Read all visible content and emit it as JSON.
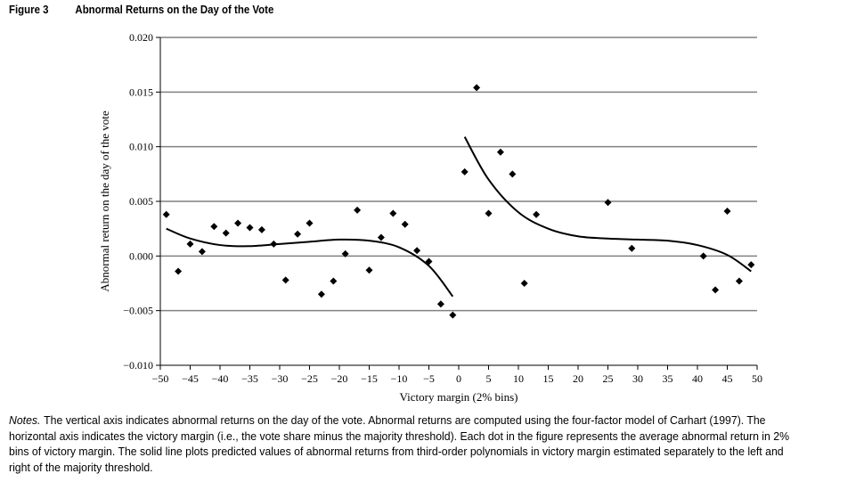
{
  "header": {
    "figure": "Figure 3",
    "title": "Abnormal Returns on the Day of the Vote"
  },
  "notes": {
    "label": "Notes.",
    "text": "The vertical axis indicates abnormal returns on the day of the vote. Abnormal returns are computed using the four-factor model of Carhart (1997). The horizontal axis indicates the victory margin (i.e., the vote share minus the majority threshold). Each dot in the figure represents the average abnormal return in 2% bins of victory margin. The solid line plots predicted values of abnormal returns from third-order polynomials in victory margin estimated separately to the left and right of the majority threshold."
  },
  "chart_data": {
    "type": "scatter",
    "title": "Abnormal Returns on the Day of the Vote",
    "xlabel": "Victory margin (2% bins)",
    "ylabel": "Abnormal return on the day of the vote",
    "xlim": [
      -50,
      50
    ],
    "ylim": [
      -0.01,
      0.02
    ],
    "xticks": [
      -50,
      -45,
      -40,
      -35,
      -30,
      -25,
      -20,
      -15,
      -10,
      -5,
      0,
      5,
      10,
      15,
      20,
      25,
      30,
      35,
      40,
      45,
      50
    ],
    "xtick_labels": [
      "−50",
      "−45",
      "−40",
      "−35",
      "−30",
      "−25",
      "−20",
      "−15",
      "−10",
      "−5",
      "0",
      "5",
      "10",
      "15",
      "20",
      "25",
      "30",
      "35",
      "40",
      "45",
      "50"
    ],
    "yticks": [
      -0.01,
      -0.005,
      0.0,
      0.005,
      0.01,
      0.015,
      0.02
    ],
    "ytick_labels": [
      "−0.010",
      "−0.005",
      "0.000",
      "0.005",
      "0.010",
      "0.015",
      "0.020"
    ],
    "grid": "horizontal",
    "points": {
      "x": [
        -49,
        -47,
        -45,
        -43,
        -41,
        -39,
        -37,
        -35,
        -33,
        -31,
        -29,
        -27,
        -25,
        -23,
        -21,
        -19,
        -17,
        -15,
        -13,
        -11,
        -9,
        -7,
        -5,
        -3,
        -1,
        1,
        3,
        5,
        7,
        9,
        11,
        13,
        25,
        29,
        41,
        43,
        45,
        47,
        49
      ],
      "y": [
        0.0038,
        -0.0014,
        0.0011,
        0.0004,
        0.0027,
        0.0021,
        0.003,
        0.0026,
        0.0024,
        0.0011,
        -0.0022,
        0.002,
        0.003,
        -0.0035,
        -0.0023,
        0.0002,
        0.0042,
        -0.0013,
        0.0017,
        0.0039,
        0.0029,
        0.0005,
        -0.0005,
        -0.0044,
        -0.0054,
        0.0077,
        0.0154,
        0.0039,
        0.0095,
        0.0075,
        -0.0025,
        0.0038,
        0.0049,
        0.0007,
        0.0,
        -0.0031,
        0.0041,
        -0.0023,
        -0.0008
      ]
    },
    "fit_left": {
      "x": [
        -49,
        -45,
        -40,
        -35,
        -30,
        -25,
        -20,
        -15,
        -10,
        -5,
        -1
      ],
      "y": [
        0.0025,
        0.0016,
        0.001,
        0.0009,
        0.0011,
        0.0013,
        0.0015,
        0.0014,
        0.0008,
        -0.0009,
        -0.0037
      ]
    },
    "fit_right": {
      "x": [
        1,
        5,
        10,
        15,
        20,
        25,
        30,
        35,
        40,
        45,
        49
      ],
      "y": [
        0.0109,
        0.007,
        0.004,
        0.0025,
        0.0018,
        0.0016,
        0.0015,
        0.0014,
        0.001,
        0.0001,
        -0.0014
      ]
    }
  }
}
